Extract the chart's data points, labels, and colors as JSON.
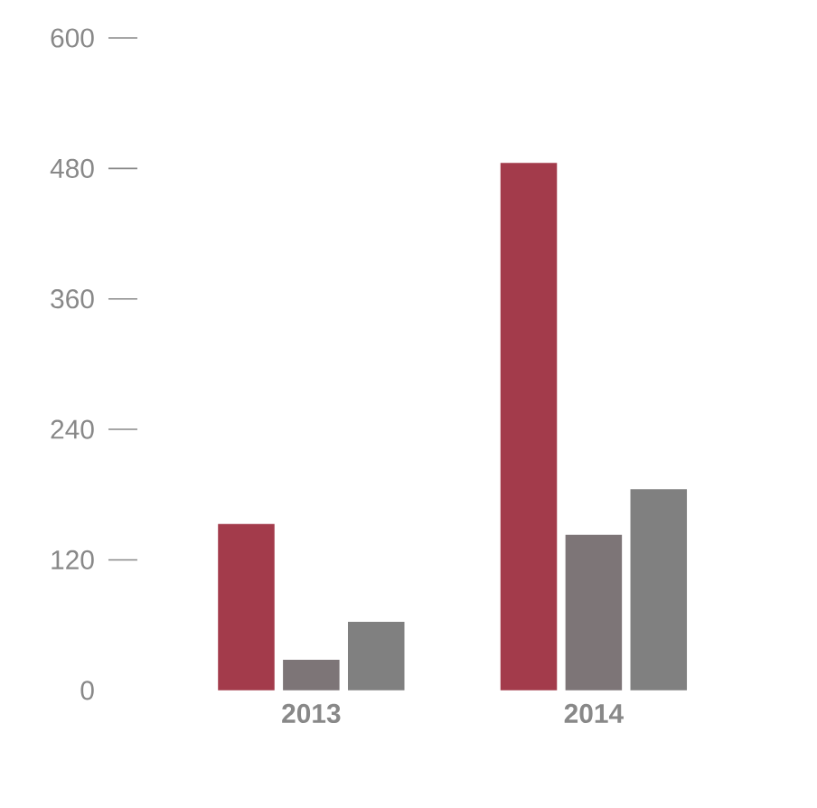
{
  "chart_data": {
    "type": "bar",
    "categories": [
      "2013",
      "2014"
    ],
    "series": [
      {
        "color": "#a33b4b",
        "values": [
          153,
          485
        ]
      },
      {
        "color": "#7d7577",
        "values": [
          28,
          143
        ]
      },
      {
        "color": "#808080",
        "values": [
          63,
          185
        ]
      }
    ],
    "ylim": [
      0,
      600
    ],
    "yticks": [
      0,
      120,
      240,
      360,
      480,
      600
    ]
  }
}
